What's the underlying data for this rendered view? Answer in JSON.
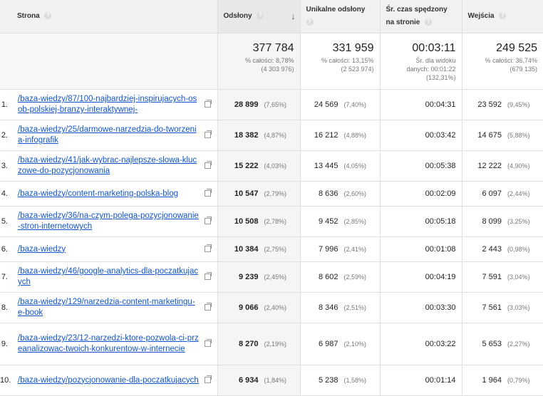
{
  "header": {
    "col_page": "Strona",
    "col_pageviews": "Odsłony",
    "col_unique": "Unikalne odsłony",
    "col_time_line1": "Śr. czas spędzony",
    "col_time_line2": "na stronie",
    "col_entrances": "Wejścia",
    "help_glyph": "?",
    "sort_glyph": "↓"
  },
  "summary": {
    "pageviews": {
      "value": "377 784",
      "line1": "% całości: 8,78%",
      "line2": "(4 303 976)"
    },
    "unique": {
      "value": "331 959",
      "line1": "% całości: 13,15%",
      "line2": "(2 523 974)"
    },
    "time": {
      "value": "00:03:11",
      "line1": "Śr. dla widoku",
      "line2": "danych: 00:01:22",
      "line3": "(132,31%)"
    },
    "entrances": {
      "value": "249 525",
      "line1": "% całości: 36,74%",
      "line2": "(679 135)"
    }
  },
  "rows": [
    {
      "idx": "1.",
      "page": "/baza-wiedzy/87/100-najbardziej-inspirujacych-osob-polskiej-branzy-interaktywnej-",
      "pv": "28 899",
      "pv_pct": "(7,65%)",
      "uv": "24 569",
      "uv_pct": "(7,40%)",
      "time": "00:04:31",
      "ent": "23 592",
      "ent_pct": "(9,45%)"
    },
    {
      "idx": "2.",
      "page": "/baza-wiedzy/25/darmowe-narzedzia-do-tworzenia-infografik",
      "pv": "18 382",
      "pv_pct": "(4,87%)",
      "uv": "16 212",
      "uv_pct": "(4,88%)",
      "time": "00:03:42",
      "ent": "14 675",
      "ent_pct": "(5,88%)"
    },
    {
      "idx": "3.",
      "page": "/baza-wiedzy/41/jak-wybrac-najlepsze-slowa-kluczowe-do-pozycjonowania",
      "pv": "15 222",
      "pv_pct": "(4,03%)",
      "uv": "13 445",
      "uv_pct": "(4,05%)",
      "time": "00:05:38",
      "ent": "12 222",
      "ent_pct": "(4,90%)"
    },
    {
      "idx": "4.",
      "page": "/baza-wiedzy/content-marketing-polska-blog",
      "pv": "10 547",
      "pv_pct": "(2,79%)",
      "uv": "8 636",
      "uv_pct": "(2,60%)",
      "time": "00:02:09",
      "ent": "6 097",
      "ent_pct": "(2,44%)"
    },
    {
      "idx": "5.",
      "page": "/baza-wiedzy/36/na-czym-polega-pozycjonowanie-stron-internetowych",
      "pv": "10 508",
      "pv_pct": "(2,78%)",
      "uv": "9 452",
      "uv_pct": "(2,85%)",
      "time": "00:05:18",
      "ent": "8 099",
      "ent_pct": "(3,25%)"
    },
    {
      "idx": "6.",
      "page": "/baza-wiedzy",
      "pv": "10 384",
      "pv_pct": "(2,75%)",
      "uv": "7 996",
      "uv_pct": "(2,41%)",
      "time": "00:01:08",
      "ent": "2 443",
      "ent_pct": "(0,98%)"
    },
    {
      "idx": "7.",
      "page": "/baza-wiedzy/46/google-analytics-dla-poczatkujacych",
      "pv": "9 239",
      "pv_pct": "(2,45%)",
      "uv": "8 602",
      "uv_pct": "(2,59%)",
      "time": "00:04:19",
      "ent": "7 591",
      "ent_pct": "(3,04%)"
    },
    {
      "idx": "8.",
      "page": "/baza-wiedzy/129/narzedzia-content-marketingu-e-book",
      "pv": "9 066",
      "pv_pct": "(2,40%)",
      "uv": "8 346",
      "uv_pct": "(2,51%)",
      "time": "00:03:30",
      "ent": "7 561",
      "ent_pct": "(3,03%)"
    },
    {
      "idx": "9.",
      "page": "/baza-wiedzy/23/12-narzedzi-ktore-pozwola-ci-przeanalizowac-twoich-konkurentow-w-internecie",
      "pv": "8 270",
      "pv_pct": "(2,19%)",
      "uv": "6 987",
      "uv_pct": "(2,10%)",
      "time": "00:03:22",
      "ent": "5 653",
      "ent_pct": "(2,27%)"
    },
    {
      "idx": "10.",
      "page": "/baza-wiedzy/pozycjonowanie-dla-poczatkujacych",
      "pv": "6 934",
      "pv_pct": "(1,84%)",
      "uv": "5 238",
      "uv_pct": "(1,58%)",
      "time": "00:01:14",
      "ent": "1 964",
      "ent_pct": "(0,79%)"
    }
  ]
}
